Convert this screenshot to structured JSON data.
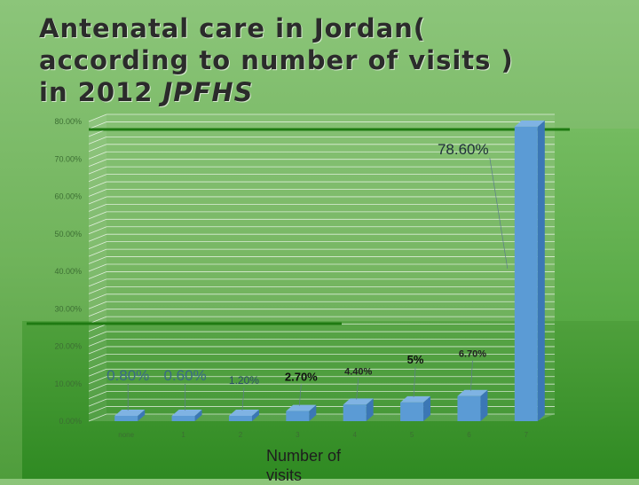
{
  "title": {
    "line1": "Antenatal care in Jordan(",
    "line2": "according to number of visits )",
    "line3_prefix": "in 2012 ",
    "line3_em": "JPFHS"
  },
  "colors": {
    "bar_front": "#5b9bd5",
    "bar_side": "#3b77b5",
    "bar_top": "#7fb3e3",
    "grid": "#ffffff",
    "accent_line": "#1f7a12"
  },
  "chart_data": {
    "type": "bar",
    "style": "3d",
    "categories": [
      "none",
      "1",
      "2",
      "3",
      "4",
      "5",
      "6",
      "7"
    ],
    "values": [
      0.8,
      0.6,
      1.2,
      2.7,
      4.4,
      5,
      6.7,
      78.6
    ],
    "data_labels": [
      "0.80%",
      "0.60%",
      "1.20%",
      "2.70%",
      "4.40%",
      "5%",
      "6.70%",
      "78.60%"
    ],
    "ylim": [
      0,
      80
    ],
    "y_ticks": [
      "0.00%",
      "10.00%",
      "20.00%",
      "30.00%",
      "40.00%",
      "50.00%",
      "60.00%",
      "70.00%",
      "80.00%"
    ],
    "xlabel": "Number of visits",
    "grid": true,
    "legend": "none"
  }
}
